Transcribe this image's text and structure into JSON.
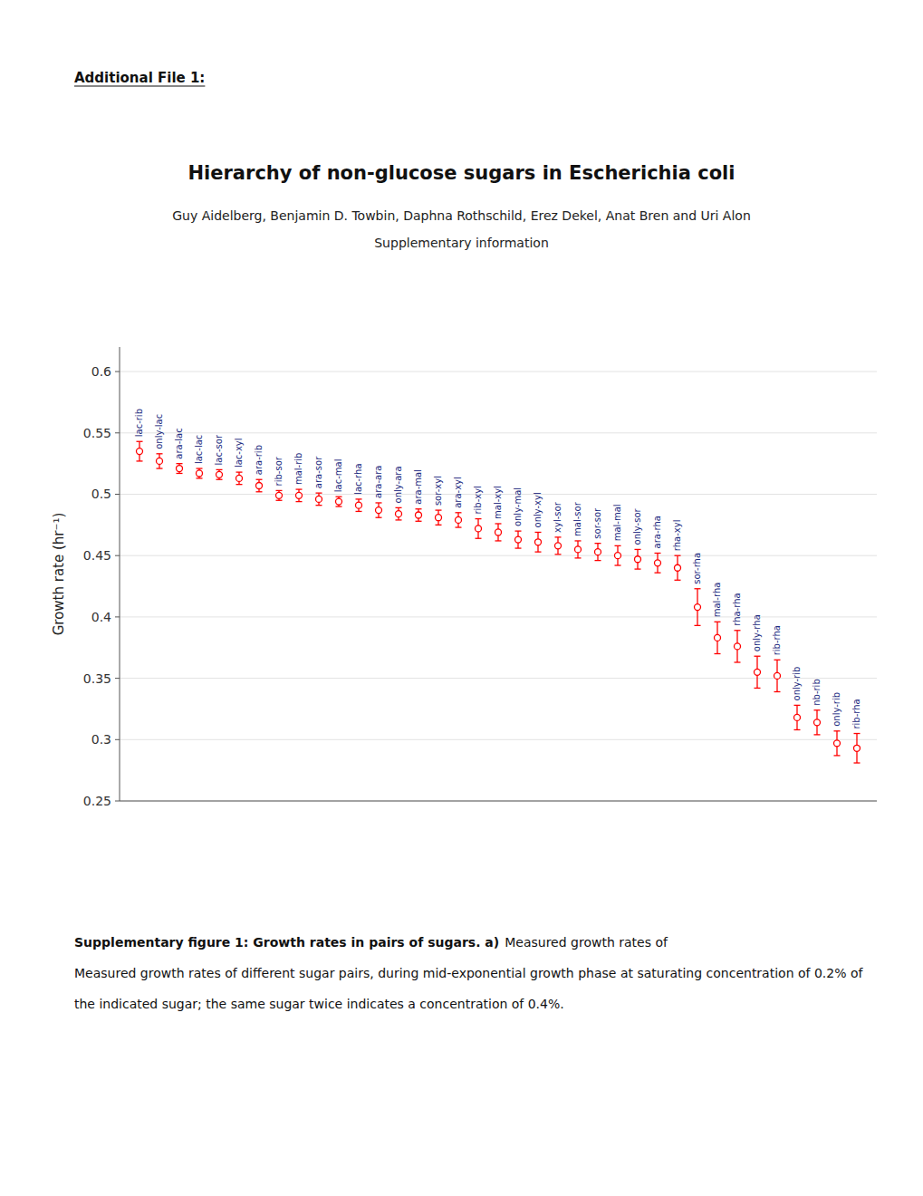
{
  "chart_data": {
    "type": "errorbar",
    "title": "Hierarchy of non-glucose sugars in Escherichia coli",
    "ylabel": "Growth rate (hr⁻¹)",
    "annotations": [
      "Additional File 1:",
      "Guy Aidelberg, Benjamin D. Towbin, Daphna Rothschild, Erez Dekel, Anat Bren and Uri Alon",
      "Supplementary information",
      "Supplementary figure 1: Growth rates in pairs of sugars. a)",
      "Measured growth rates of",
      "Measured growth rates of different sugar pairs, during mid-exponential growth phase at saturating concentration of 0.2% of",
      "the indicated sugar; the same sugar twice indicates a concentration of 0.4%."
    ],
    "categories": [
      "lac-rib",
      "only-lac",
      "ara-lac",
      "lac-lac",
      "lac-sor",
      "lac-xyl",
      "ara-rib",
      "rib-sor",
      "mal-rib",
      "ara-sor",
      "lac-mal",
      "lac-rha",
      "ara-ara",
      "only-ara",
      "ara-mal",
      "sor-xyl",
      "ara-xyl",
      "rib-xyl",
      "mal-xyl",
      "only-mal",
      "only-xyl",
      "xyl-sor",
      "mal-sor",
      "sor-sor",
      "mal-mal",
      "only-sor",
      "ara-rha",
      "rha-xyl",
      "sor-rha",
      "mal-rha",
      "rha-rha",
      "only-rha",
      "rib-rha",
      "only-rib",
      "nb-rib",
      "only-rib",
      "rib-rha"
    ],
    "values": [
      0.535,
      0.527,
      0.521,
      0.517,
      0.516,
      0.513,
      0.507,
      0.499,
      0.499,
      0.496,
      0.494,
      0.491,
      0.487,
      0.484,
      0.483,
      0.481,
      0.479,
      0.472,
      0.469,
      0.463,
      0.461,
      0.458,
      0.455,
      0.453,
      0.45,
      0.447,
      0.444,
      0.44,
      0.408,
      0.383,
      0.376,
      0.355,
      0.352,
      0.318,
      0.314,
      0.297,
      0.293
    ],
    "errors": [
      0.008,
      0.006,
      0.004,
      0.004,
      0.004,
      0.005,
      0.005,
      0.004,
      0.005,
      0.005,
      0.004,
      0.005,
      0.006,
      0.005,
      0.005,
      0.006,
      0.006,
      0.008,
      0.007,
      0.007,
      0.008,
      0.007,
      0.007,
      0.007,
      0.008,
      0.008,
      0.008,
      0.01,
      0.015,
      0.013,
      0.013,
      0.013,
      0.013,
      0.01,
      0.01,
      0.01,
      0.012
    ],
    "color": "#FF0000",
    "ylim": [
      0.25,
      0.62
    ],
    "yticks": [
      0.25,
      0.3,
      0.35,
      0.4,
      0.45,
      0.5,
      0.55,
      0.6
    ],
    "grid": true,
    "tick_labels": "y"
  }
}
